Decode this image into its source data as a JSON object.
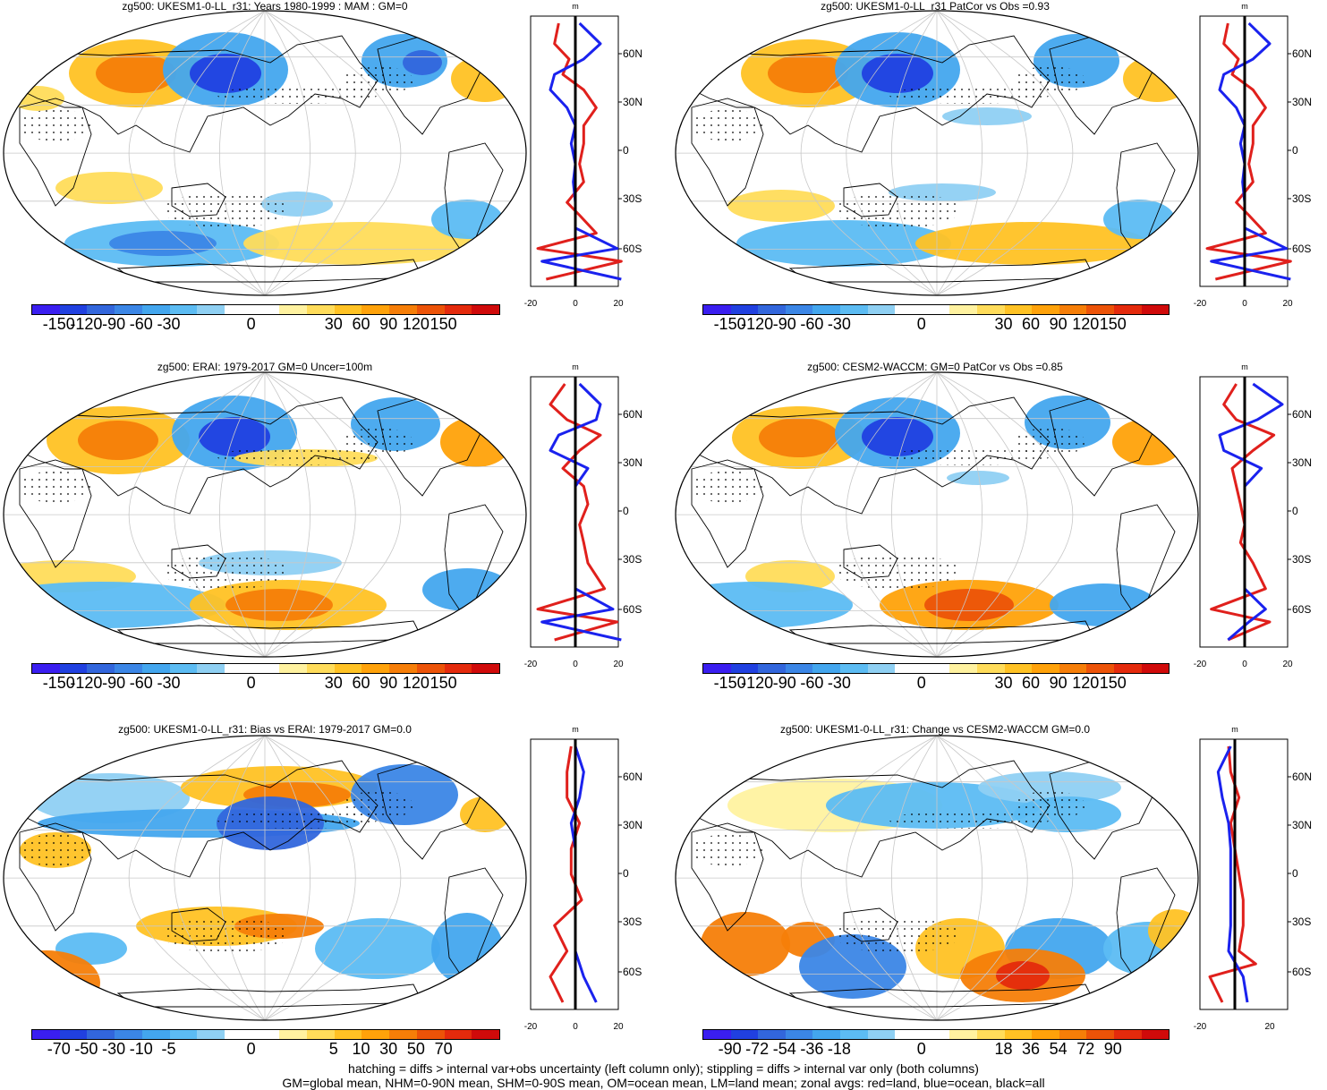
{
  "palette_colors": [
    "#3a1ef0",
    "#2040e0",
    "#3266dc",
    "#3b86e6",
    "#43a6ee",
    "#5cbcf3",
    "#8fd0f3",
    "#ffffff",
    "#ffffff",
    "#fff2a0",
    "#ffdc5a",
    "#ffc224",
    "#ffa20a",
    "#f67e08",
    "#ec5308",
    "#e42a0c",
    "#d00a0a"
  ],
  "colors": {
    "land_line": "#e0201c",
    "ocean_line": "#1a22ee",
    "all_line": "#000000"
  },
  "panels": [
    {
      "title": "zg500: UKESM1-0-LL_r31: Years 1980-1999 : MAM : GM=0",
      "cbar_labels": [
        "-150",
        "-120",
        "-90",
        "-60",
        "-30",
        "0",
        "30",
        "60",
        "90",
        "120",
        "150"
      ],
      "zonal": {
        "unit": "m",
        "lat_labels": [
          "60N",
          "30N",
          "0",
          "30S",
          "60S"
        ],
        "x_labels": [
          "-20",
          "0",
          "20"
        ]
      }
    },
    {
      "title": "zg500: UKESM1-0-LL_r31 PatCor vs Obs =0.93",
      "cbar_labels": [
        "-150",
        "-120",
        "-90",
        "-60",
        "-30",
        "0",
        "30",
        "60",
        "90",
        "120",
        "150"
      ],
      "zonal": {
        "unit": "m",
        "lat_labels": [
          "60N",
          "30N",
          "0",
          "30S",
          "60S"
        ],
        "x_labels": [
          "-20",
          "0",
          "20"
        ]
      }
    },
    {
      "title": "zg500: ERAI: 1979-2017 GM=0 Uncer=100m",
      "cbar_labels": [
        "-150",
        "-120",
        "-90",
        "-60",
        "-30",
        "0",
        "30",
        "60",
        "90",
        "120",
        "150"
      ],
      "zonal": {
        "unit": "m",
        "lat_labels": [
          "60N",
          "30N",
          "0",
          "30S",
          "60S"
        ],
        "x_labels": [
          "-20",
          "0",
          "20"
        ]
      }
    },
    {
      "title": "zg500: CESM2-WACCM: GM=0 PatCor vs Obs =0.85",
      "cbar_labels": [
        "-150",
        "-120",
        "-90",
        "-60",
        "-30",
        "0",
        "30",
        "60",
        "90",
        "120",
        "150"
      ],
      "zonal": {
        "unit": "m",
        "lat_labels": [
          "60N",
          "30N",
          "0",
          "30S",
          "60S"
        ],
        "x_labels": [
          "-20",
          "0",
          "20"
        ]
      }
    },
    {
      "title": "zg500: UKESM1-0-LL_r31: Bias vs ERAI: 1979-2017 GM=0.0",
      "cbar_labels": [
        "-70",
        "-50",
        "-30",
        "-10",
        "-5",
        "0",
        "5",
        "10",
        "30",
        "50",
        "70"
      ],
      "zonal": {
        "unit": "m",
        "lat_labels": [
          "60N",
          "30N",
          "0",
          "30S",
          "60S"
        ],
        "x_labels": [
          "-20",
          "0",
          "20"
        ]
      }
    },
    {
      "title": "zg500: UKESM1-0-LL_r31: Change vs CESM2-WACCM GM=0.0",
      "cbar_labels": [
        "-90",
        "-72",
        "-54",
        "-36",
        "-18",
        "0",
        "18",
        "36",
        "54",
        "72",
        "90"
      ],
      "zonal": {
        "unit": "m",
        "lat_labels": [
          "60N",
          "30N",
          "0",
          "30S",
          "60S"
        ],
        "x_labels": [
          "-20",
          "20"
        ]
      }
    }
  ],
  "footnote": {
    "line1": "hatching = diffs > internal var+obs uncertainty (left column only); stippling = diffs > internal var only (both columns)",
    "line2": "GM=global mean, NHM=0-90N mean, SHM=0-90S mean, OM=ocean mean, LM=land mean; zonal avgs: red=land, blue=ocean, black=all"
  },
  "chart_data": [
    {
      "type": "heatmap",
      "title": "zg500: UKESM1-0-LL_r31: Years 1980-1999 : MAM : GM=0",
      "colorbar_levels": [
        -150,
        -120,
        -90,
        -60,
        -30,
        0,
        30,
        60,
        90,
        120,
        150
      ],
      "zonal_profile": {
        "xlim": [
          -20,
          20
        ],
        "ylabels": [
          "60N",
          "30N",
          "0",
          "30S",
          "60S"
        ]
      }
    },
    {
      "type": "heatmap",
      "title": "zg500: UKESM1-0-LL_r31 PatCor vs Obs =0.93",
      "colorbar_levels": [
        -150,
        -120,
        -90,
        -60,
        -30,
        0,
        30,
        60,
        90,
        120,
        150
      ],
      "zonal_profile": {
        "xlim": [
          -20,
          20
        ],
        "ylabels": [
          "60N",
          "30N",
          "0",
          "30S",
          "60S"
        ]
      }
    },
    {
      "type": "heatmap",
      "title": "zg500: ERAI: 1979-2017 GM=0 Uncer=100m",
      "colorbar_levels": [
        -150,
        -120,
        -90,
        -60,
        -30,
        0,
        30,
        60,
        90,
        120,
        150
      ],
      "zonal_profile": {
        "xlim": [
          -20,
          20
        ],
        "ylabels": [
          "60N",
          "30N",
          "0",
          "30S",
          "60S"
        ]
      }
    },
    {
      "type": "heatmap",
      "title": "zg500: CESM2-WACCM: GM=0 PatCor vs Obs =0.85",
      "colorbar_levels": [
        -150,
        -120,
        -90,
        -60,
        -30,
        0,
        30,
        60,
        90,
        120,
        150
      ],
      "zonal_profile": {
        "xlim": [
          -20,
          20
        ],
        "ylabels": [
          "60N",
          "30N",
          "0",
          "30S",
          "60S"
        ]
      }
    },
    {
      "type": "heatmap",
      "title": "zg500: UKESM1-0-LL_r31: Bias vs ERAI: 1979-2017 GM=0.0",
      "colorbar_levels": [
        -70,
        -50,
        -30,
        -10,
        -5,
        0,
        5,
        10,
        30,
        50,
        70
      ],
      "zonal_profile": {
        "xlim": [
          -20,
          20
        ],
        "ylabels": [
          "60N",
          "30N",
          "0",
          "30S",
          "60S"
        ]
      }
    },
    {
      "type": "heatmap",
      "title": "zg500: UKESM1-0-LL_r31: Change vs CESM2-WACCM GM=0.0",
      "colorbar_levels": [
        -90,
        -72,
        -54,
        -36,
        -18,
        0,
        18,
        36,
        54,
        72,
        90
      ],
      "zonal_profile": {
        "xlim": [
          -20,
          20
        ],
        "ylabels": [
          "60N",
          "30N",
          "0",
          "30S",
          "60S"
        ]
      }
    }
  ]
}
